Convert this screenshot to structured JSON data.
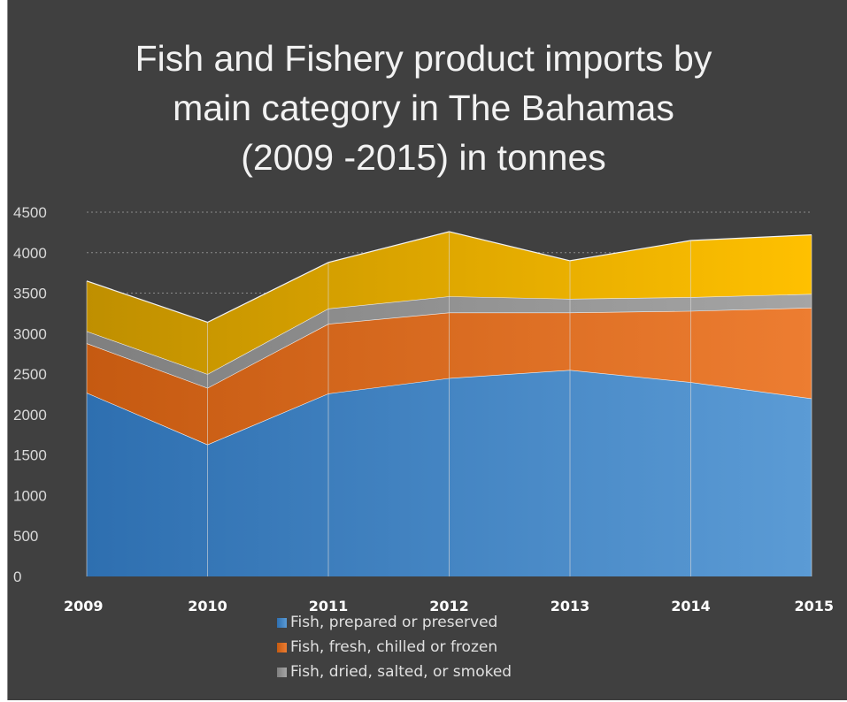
{
  "chart_data": {
    "type": "area",
    "stacked": true,
    "title": "Fish and Fishery product imports by main category in The Bahamas (2009 -2015) in tonnes",
    "title_lines": [
      "Fish and Fishery product imports by",
      "main category in The Bahamas",
      "(2009 -2015) in tonnes"
    ],
    "categories": [
      "2009",
      "2010",
      "2011",
      "2012",
      "2013",
      "2014",
      "2015"
    ],
    "ylim": [
      0,
      4500
    ],
    "yticks": [
      "0",
      "500",
      "1000",
      "1500",
      "2000",
      "2500",
      "3000",
      "3500",
      "4000",
      "4500"
    ],
    "grid": true,
    "legend_position": "bottom",
    "series": [
      {
        "name": "Fish, prepared or preserved",
        "values": [
          2270,
          1630,
          2260,
          2450,
          2550,
          2400,
          2200
        ],
        "color_start": "#2e6fb0",
        "color_end": "#5b9bd5"
      },
      {
        "name": "Fish, fresh, chilled or frozen",
        "values": [
          610,
          700,
          860,
          810,
          710,
          880,
          1120
        ],
        "color_start": "#c55a11",
        "color_end": "#ed7d31"
      },
      {
        "name": "Fish, dried, salted, or smoked",
        "values": [
          150,
          170,
          190,
          200,
          170,
          170,
          170
        ],
        "color_start": "#7f7f7f",
        "color_end": "#a5a5a5"
      },
      {
        "values": [
          620,
          640,
          570,
          800,
          470,
          700,
          730
        ],
        "color_start": "#bf8f00",
        "color_end": "#ffc000"
      }
    ]
  }
}
